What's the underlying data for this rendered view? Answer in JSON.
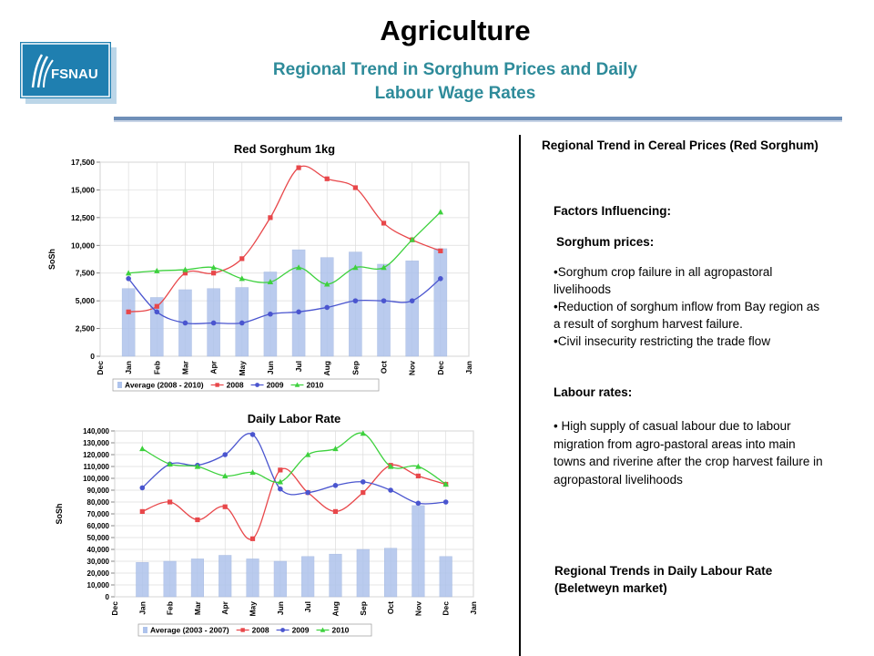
{
  "header": {
    "logo_text": "FSNAU",
    "title": "Agriculture",
    "subtitle_line1": "Regional Trend in Sorghum Prices and Daily",
    "subtitle_line2": "Labour Wage Rates"
  },
  "right": {
    "heading1": "Regional Trend in Cereal Prices (Red Sorghum)",
    "factors": "Factors Influencing:",
    "sorghum_prices_heading": "Sorghum prices:",
    "sorghum_bullets": [
      "Sorghum crop failure in all agropastoral livelihoods",
      "Reduction of sorghum inflow from Bay region as a result of sorghum harvest failure.",
      "Civil insecurity restricting the trade flow"
    ],
    "labour_heading": "Labour rates:",
    "labour_bullets": [
      " High supply of casual labour due to labour migration from agro-pastoral areas into main towns and riverine after the crop harvest failure in agropastoral  livelihoods"
    ],
    "heading2": "Regional Trends in Daily Labour Rate (Beletweyn market)"
  },
  "chart_data": [
    {
      "type": "bar",
      "title": "Red Sorghum 1kg",
      "ylabel": "SoSh",
      "xlabel": "",
      "ylim": [
        0,
        17500
      ],
      "yticks": [
        "0",
        "2,500",
        "5,000",
        "7,500",
        "10,000",
        "12,500",
        "15,000",
        "17,500"
      ],
      "ytick_values": [
        0,
        2500,
        5000,
        7500,
        10000,
        12500,
        15000,
        17500
      ],
      "xticks": [
        "Dec",
        "Jan",
        "Feb",
        "Mar",
        "Apr",
        "May",
        "Jun",
        "Jul",
        "Aug",
        "Sep",
        "Oct",
        "Nov",
        "Dec",
        "Jan"
      ],
      "categories": [
        "Jan",
        "Feb",
        "Mar",
        "Apr",
        "May",
        "Jun",
        "Jul",
        "Aug",
        "Sep",
        "Oct",
        "Nov",
        "Dec"
      ],
      "grid": true,
      "legend_position": "bottom",
      "series": [
        {
          "name": "Average (2008 - 2010)",
          "kind": "bar",
          "color": "#aec3ec",
          "values": [
            6100,
            5300,
            6000,
            6100,
            6200,
            7600,
            9600,
            8900,
            9400,
            8300,
            8600,
            9700
          ]
        },
        {
          "name": "2008",
          "kind": "line",
          "marker": "square",
          "color": "#e8474a",
          "values": [
            4000,
            4500,
            7500,
            7500,
            8800,
            12500,
            17000,
            16000,
            15200,
            12000,
            10500,
            9500
          ]
        },
        {
          "name": "2009",
          "kind": "line",
          "marker": "circle",
          "color": "#4a55cf",
          "values": [
            7000,
            4000,
            3000,
            3000,
            3000,
            3800,
            4000,
            4400,
            5000,
            5000,
            5000,
            7000
          ]
        },
        {
          "name": "2010",
          "kind": "line",
          "marker": "triangle",
          "color": "#3dd13d",
          "values": [
            7500,
            7700,
            7800,
            8000,
            7000,
            6700,
            8000,
            6500,
            8000,
            8000,
            10500,
            13000
          ]
        }
      ]
    },
    {
      "type": "bar",
      "title": "Daily Labor Rate",
      "ylabel": "SoSh",
      "xlabel": "",
      "ylim": [
        0,
        140000
      ],
      "yticks": [
        "0",
        "10,000",
        "20,000",
        "30,000",
        "40,000",
        "50,000",
        "60,000",
        "70,000",
        "80,000",
        "90,000",
        "100,000",
        "110,000",
        "120,000",
        "130,000",
        "140,000"
      ],
      "ytick_values": [
        0,
        10000,
        20000,
        30000,
        40000,
        50000,
        60000,
        70000,
        80000,
        90000,
        100000,
        110000,
        120000,
        130000,
        140000
      ],
      "xticks": [
        "Dec",
        "Jan",
        "Feb",
        "Mar",
        "Apr",
        "May",
        "Jun",
        "Jul",
        "Aug",
        "Sep",
        "Oct",
        "Nov",
        "Dec",
        "Jan"
      ],
      "categories": [
        "Jan",
        "Feb",
        "Mar",
        "Apr",
        "May",
        "Jun",
        "Jul",
        "Aug",
        "Sep",
        "Oct",
        "Nov",
        "Dec"
      ],
      "grid": true,
      "legend_position": "bottom",
      "series": [
        {
          "name": "Average (2003 - 2007)",
          "kind": "bar",
          "color": "#aec3ec",
          "values": [
            29000,
            30000,
            32000,
            35000,
            32000,
            30000,
            34000,
            36000,
            40000,
            41000,
            77000,
            34000
          ]
        },
        {
          "name": "2008",
          "kind": "line",
          "marker": "square",
          "color": "#e8474a",
          "values": [
            72000,
            80000,
            65000,
            76000,
            49000,
            107000,
            88000,
            72000,
            88000,
            111000,
            102000,
            95000
          ]
        },
        {
          "name": "2009",
          "kind": "line",
          "marker": "circle",
          "color": "#4a55cf",
          "values": [
            92000,
            112000,
            111000,
            120000,
            137000,
            91000,
            88000,
            94000,
            97000,
            90000,
            79000,
            80000
          ]
        },
        {
          "name": "2010",
          "kind": "line",
          "marker": "triangle",
          "color": "#3dd13d",
          "values": [
            125000,
            112000,
            110000,
            102000,
            105000,
            97000,
            120000,
            125000,
            138000,
            110000,
            110000,
            95000
          ]
        }
      ]
    }
  ]
}
